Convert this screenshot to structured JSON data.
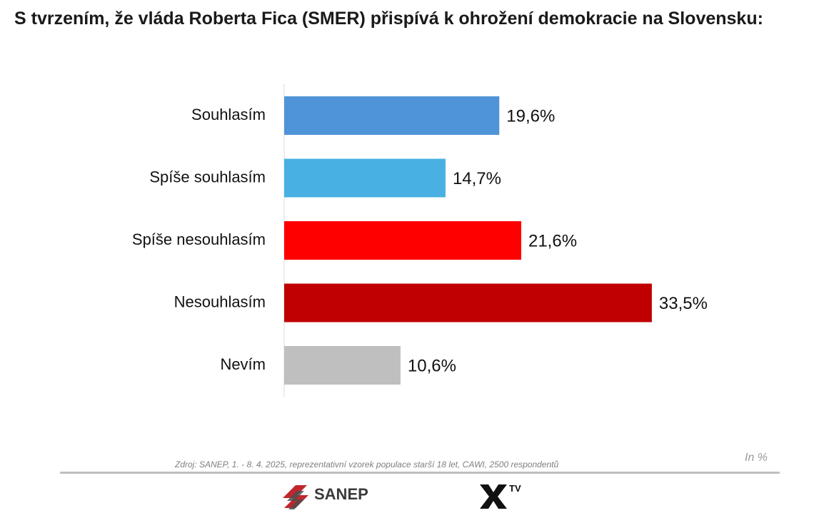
{
  "title": "S tvrzením, že vláda Roberta Fica (SMER) přispívá k ohrožení demokracie na Slovensku:",
  "source": "Zdroj: SANEP, 1. - 8. 4. 2025, reprezentativní vzorek populace starší 18 let, CAWI, 2500 respondentů",
  "unit_note": "In %",
  "logos": {
    "sanep": "SANEP",
    "xtv": "TV"
  },
  "chart_data": {
    "type": "bar",
    "orientation": "horizontal",
    "categories": [
      "Souhlasím",
      "Spíše souhlasím",
      "Spíše nesouhlasím",
      "Nesouhlasím",
      "Nevím"
    ],
    "values": [
      19.6,
      14.7,
      21.6,
      33.5,
      10.6
    ],
    "value_labels": [
      "19,6%",
      "14,7%",
      "21,6%",
      "33,5%",
      "10,6%"
    ],
    "colors": [
      "#4f94d8",
      "#48b0e2",
      "#ff0000",
      "#c00000",
      "#bfbfbf"
    ],
    "title": "S tvrzením, že vláda Roberta Fica (SMER) přispívá k ohrožení demokracie na Slovensku:",
    "xlim": [
      0,
      40
    ],
    "grid": false,
    "legend": "none"
  }
}
